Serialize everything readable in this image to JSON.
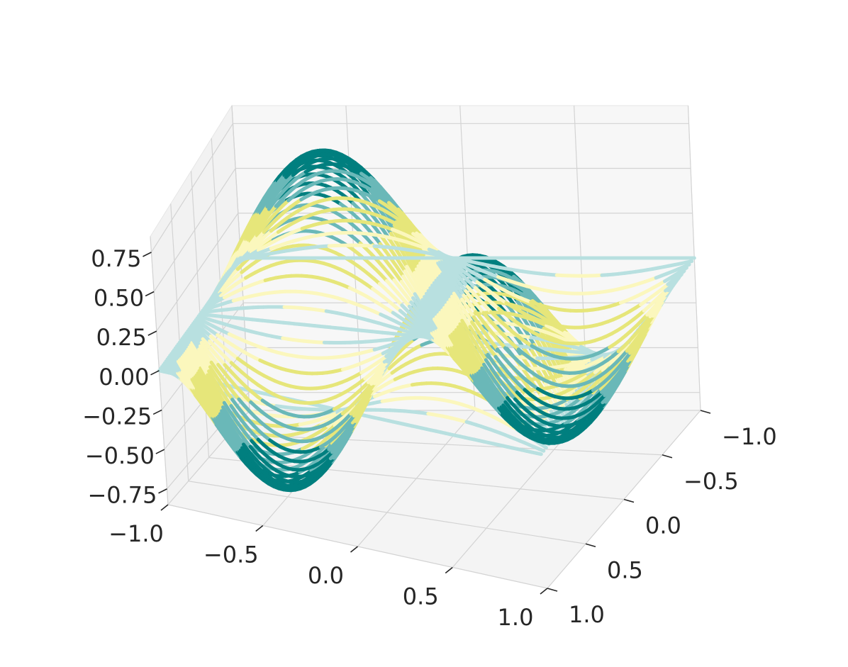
{
  "chart_data": {
    "type": "3d-contour",
    "title": "",
    "xlabel": "",
    "ylabel": "",
    "zlabel": "",
    "x_ticks": [
      "−1.0",
      "−0.5",
      "0.0",
      "0.5",
      "1.0"
    ],
    "y_ticks": [
      "−1.0",
      "−0.5",
      "0.0",
      "0.5",
      "1.0"
    ],
    "z_ticks": [
      "−0.75",
      "−0.50",
      "−0.25",
      "0.00",
      "0.25",
      "0.50",
      "0.75"
    ],
    "xlim": [
      -1.0,
      1.0
    ],
    "ylim": [
      -1.0,
      1.0
    ],
    "zlim": [
      -0.85,
      0.85
    ],
    "surface": "z = sin(pi*x) * sin(pi*y)",
    "contour_direction": "x",
    "contour_levels": 60,
    "colormap": [
      "#007f7f",
      "#6ab8b8",
      "#e6e67a",
      "#fbf7bd",
      "#b8e0e0"
    ],
    "grid": true
  }
}
